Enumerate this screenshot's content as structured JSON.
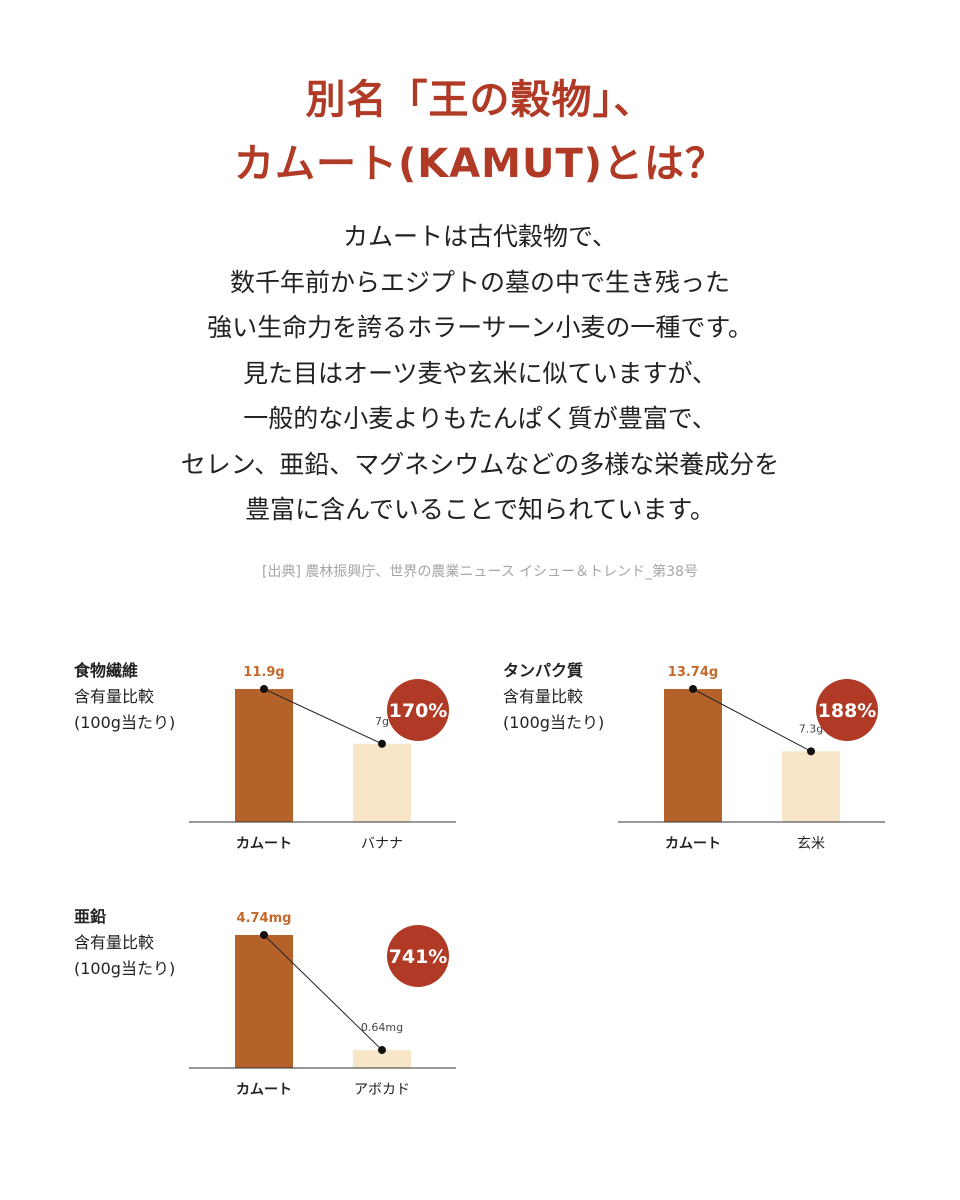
{
  "title": {
    "line1": "別名「王の穀物」、",
    "line2": "カムート(KAMUT)とは？"
  },
  "description": [
    "カムートは古代穀物で、",
    "数千年前からエジプトの墓の中で生き残った",
    "強い生命力を誇るホラーサーン小麦の一種です。",
    "見た目はオーツ麦や玄米に似ていますが、",
    "一般的な小麦よりもたんぱく質が豊富で、",
    "セレン、亜鉛、マグネシウムなどの多様な栄養成分を",
    "豊富に含んでいることで知られています。"
  ],
  "source": "[出典] 農林振興庁、世界の農業ニュース イシュー＆トレンド_第38号",
  "colors": {
    "accent": "#b03a25",
    "bar_main": "#b5622a",
    "bar_sub": "#f8e6c9",
    "value_main": "#c4692c"
  },
  "chart_data": [
    {
      "type": "bar",
      "label_title": "食物繊維",
      "label_sub1": "含有量比較",
      "label_sub2": "(100g当たり)",
      "categories": [
        "カムート",
        "バナナ"
      ],
      "values": [
        11.9,
        7
      ],
      "value_labels": [
        "11.9g",
        "7g"
      ],
      "ratio_label": "170%",
      "ylim": [
        0,
        11.9
      ]
    },
    {
      "type": "bar",
      "label_title": "タンパク質",
      "label_sub1": "含有量比較",
      "label_sub2": "(100g当たり)",
      "categories": [
        "カムート",
        "玄米"
      ],
      "values": [
        13.74,
        7.3
      ],
      "value_labels": [
        "13.74g",
        "7.3g"
      ],
      "ratio_label": "188%",
      "ylim": [
        0,
        13.74
      ]
    },
    {
      "type": "bar",
      "label_title": "亜鉛",
      "label_sub1": "含有量比較",
      "label_sub2": "(100g当たり)",
      "categories": [
        "カムート",
        "アボカド"
      ],
      "values": [
        4.74,
        0.64
      ],
      "value_labels": [
        "4.74mg",
        "0.64mg"
      ],
      "ratio_label": "741%",
      "ylim": [
        0,
        4.74
      ]
    }
  ]
}
